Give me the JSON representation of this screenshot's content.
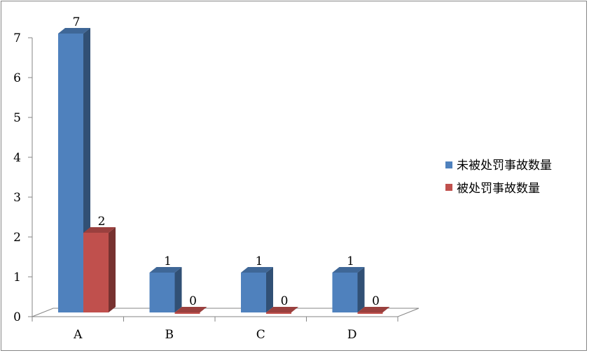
{
  "chart_data": {
    "type": "bar",
    "categories": [
      "A",
      "B",
      "C",
      "D"
    ],
    "series": [
      {
        "name": "未被处罚事故数量",
        "values": [
          7,
          1,
          1,
          1
        ],
        "color": "#4f81bd"
      },
      {
        "name": "被处罚事故数量",
        "values": [
          2,
          0,
          0,
          0
        ],
        "color": "#c0504d"
      }
    ],
    "y_ticks": [
      "0",
      "1",
      "2",
      "3",
      "4",
      "5",
      "6",
      "7"
    ],
    "ylim": [
      0,
      7
    ],
    "grid": false,
    "legend_position": "right",
    "data_labels": true,
    "style": "3d-clustered-column"
  }
}
